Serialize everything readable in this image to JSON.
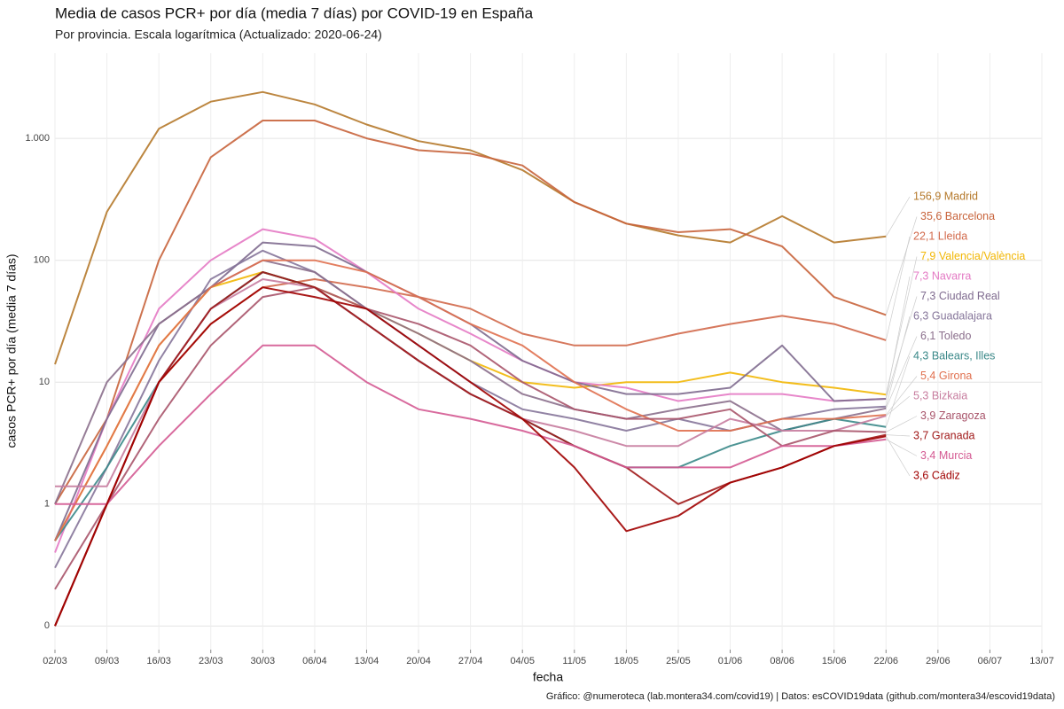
{
  "chart_data": {
    "type": "line",
    "title": "Media de casos PCR+ por día (media 7 días) por COVID-19 en España",
    "subtitle": "Por provincia. Escala logarítmica  (Actualizado: 2020-06-24)",
    "x_label": "fecha",
    "y_label": "casos PCR+ por día (media 7 días)",
    "caption": "Gráfico: @numeroteca (lab.montera34.com/covid19) | Datos: esCOVID19data (github.com/montera34/escovid19data)",
    "log_scale": true,
    "grid": true,
    "x": [
      "02/03",
      "09/03",
      "16/03",
      "23/03",
      "30/03",
      "06/04",
      "13/04",
      "20/04",
      "27/04",
      "04/05",
      "11/05",
      "18/05",
      "25/05",
      "01/06",
      "08/06",
      "15/06",
      "22/06"
    ],
    "xlim": [
      "02/03",
      "13/07"
    ],
    "xticks": [
      "02/03",
      "09/03",
      "16/03",
      "23/03",
      "30/03",
      "06/04",
      "13/04",
      "20/04",
      "27/04",
      "04/05",
      "11/05",
      "18/05",
      "25/05",
      "01/06",
      "08/06",
      "15/06",
      "22/06",
      "29/06",
      "06/07",
      "13/07"
    ],
    "ylim": [
      0.064,
      5000
    ],
    "yticks": [
      {
        "value": 0.1,
        "label": "0"
      },
      1,
      10,
      100,
      {
        "value": 1000,
        "label": "1.000"
      }
    ],
    "series": [
      {
        "name": "Madrid",
        "label": "156,9 Madrid",
        "color": "#b5792b",
        "values": [
          14,
          250,
          1200,
          2000,
          2400,
          1900,
          1300,
          950,
          800,
          550,
          300,
          200,
          160,
          140,
          230,
          140,
          156.9
        ]
      },
      {
        "name": "Barcelona",
        "label": "35,6 Barcelona",
        "color": "#c8643c",
        "values": [
          1,
          5,
          100,
          700,
          1400,
          1400,
          1000,
          800,
          750,
          600,
          300,
          200,
          170,
          180,
          130,
          50,
          35.6
        ]
      },
      {
        "name": "Lleida",
        "label": "22,1 Lleida",
        "color": "#d2694b",
        "values": [
          0.1,
          1,
          10,
          30,
          60,
          70,
          60,
          50,
          40,
          25,
          20,
          20,
          25,
          30,
          35,
          30,
          22.1
        ]
      },
      {
        "name": "Valencia/València",
        "label": "7,9 Valencia/València",
        "color": "#f2b705",
        "values": [
          0.5,
          3,
          20,
          60,
          80,
          60,
          40,
          25,
          15,
          10,
          9,
          10,
          10,
          12,
          10,
          9,
          7.9
        ]
      },
      {
        "name": "Navarra",
        "label": "7,3 Navarra",
        "color": "#e47ac4",
        "values": [
          0.4,
          5,
          40,
          100,
          180,
          150,
          80,
          40,
          25,
          15,
          10,
          9,
          7,
          8,
          8,
          7,
          7.3
        ]
      },
      {
        "name": "Ciudad Real",
        "label": "7,3 Ciudad Real",
        "color": "#7f6b8f",
        "values": [
          0.5,
          5,
          30,
          60,
          140,
          130,
          80,
          50,
          30,
          15,
          10,
          8,
          8,
          9,
          20,
          7,
          7.3
        ]
      },
      {
        "name": "Guadalajara",
        "label": "6,3 Guadalajara",
        "color": "#86769a",
        "values": [
          0.3,
          2,
          15,
          70,
          120,
          80,
          40,
          20,
          10,
          6,
          5,
          4,
          5,
          4,
          5,
          6,
          6.3
        ]
      },
      {
        "name": "Toledo",
        "label": "6,1 Toledo",
        "color": "#8b6f8c",
        "values": [
          1,
          10,
          30,
          60,
          100,
          80,
          40,
          25,
          15,
          8,
          6,
          5,
          6,
          7,
          4,
          5,
          6.1
        ]
      },
      {
        "name": "Balears, Illes",
        "label": "4,3 Balears, Illes",
        "color": "#3a8888",
        "values": [
          0.5,
          2,
          10,
          40,
          80,
          60,
          30,
          15,
          8,
          5,
          3,
          2,
          2,
          3,
          4,
          5,
          4.3
        ]
      },
      {
        "name": "Girona",
        "label": "5,4 Girona",
        "color": "#e0704f",
        "values": [
          0.5,
          3,
          20,
          60,
          100,
          100,
          80,
          50,
          30,
          20,
          10,
          6,
          4,
          4,
          5,
          5,
          5.4
        ]
      },
      {
        "name": "Bizkaia",
        "label": "5,3 Bizkaia",
        "color": "#c77c9e",
        "values": [
          1.4,
          1.4,
          10,
          40,
          70,
          60,
          30,
          15,
          8,
          5,
          4,
          3,
          3,
          5,
          4,
          4,
          5.3
        ]
      },
      {
        "name": "Zaragoza",
        "label": "3,9 Zaragoza",
        "color": "#a8546a",
        "values": [
          0.2,
          1,
          5,
          20,
          50,
          60,
          40,
          30,
          20,
          10,
          6,
          5,
          5,
          6,
          3,
          4,
          3.9
        ]
      },
      {
        "name": "Granada",
        "label": "3,7 Granada",
        "color": "#a01818",
        "values": [
          0.1,
          1,
          10,
          40,
          80,
          60,
          30,
          15,
          8,
          5,
          3,
          2,
          1,
          1.5,
          2,
          3,
          3.7
        ]
      },
      {
        "name": "Murcia",
        "label": "3,4 Murcia",
        "color": "#d45a92",
        "values": [
          1,
          1,
          3,
          8,
          20,
          20,
          10,
          6,
          5,
          4,
          3,
          2,
          2,
          2,
          3,
          3,
          3.4
        ]
      },
      {
        "name": "Cádiz",
        "label": "3,6 Cádiz",
        "color": "#a00000",
        "values": [
          0.1,
          1,
          10,
          30,
          60,
          50,
          40,
          20,
          10,
          5,
          2,
          0.6,
          0.8,
          1.5,
          2,
          3,
          3.6
        ]
      }
    ]
  }
}
